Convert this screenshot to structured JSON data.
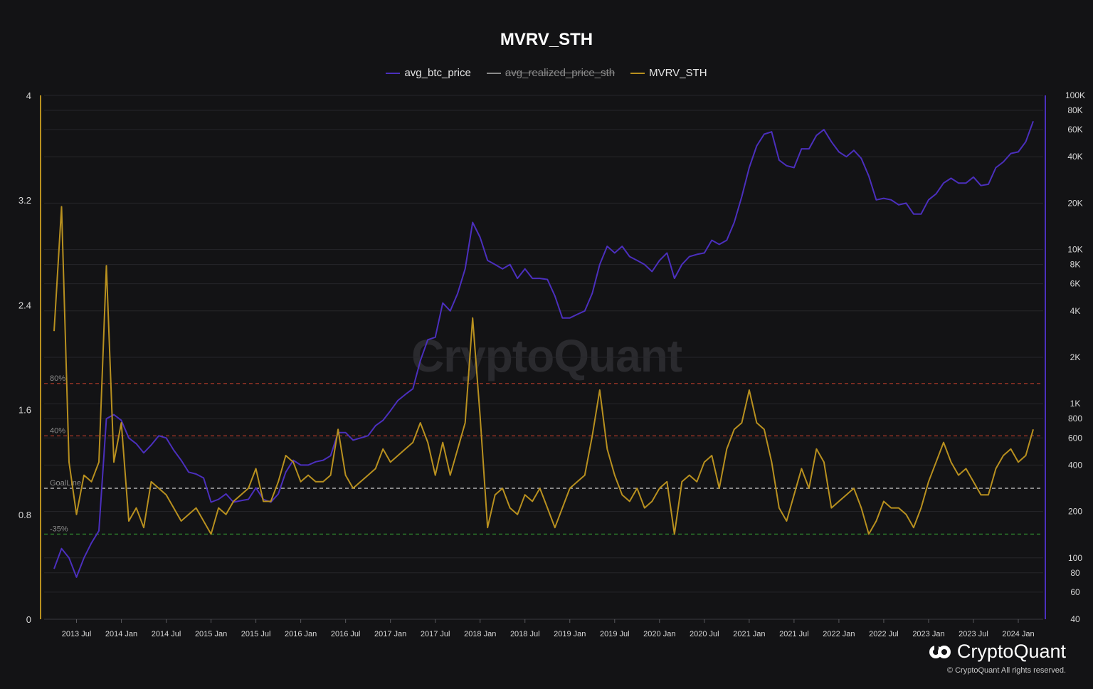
{
  "chart_data": {
    "type": "line",
    "title": "MVRV_STH",
    "legend": [
      {
        "name": "avg_btc_price",
        "color": "#4b2fbd",
        "hidden": false
      },
      {
        "name": "avg_realized_price_sth",
        "color": "#8a8a8a",
        "hidden": true
      },
      {
        "name": "MVRV_STH",
        "color": "#b8901f",
        "hidden": false
      }
    ],
    "left_axis": {
      "range": [
        0,
        4
      ],
      "ticks": [
        "0",
        "0.8",
        "1.6",
        "2.4",
        "3.2",
        "4"
      ],
      "color": "#b8901f"
    },
    "right_axis": {
      "scale": "log",
      "range": [
        40,
        100000
      ],
      "ticks": [
        "40",
        "60",
        "80",
        "100",
        "200",
        "400",
        "600",
        "800",
        "1K",
        "2K",
        "4K",
        "6K",
        "8K",
        "10K",
        "20K",
        "40K",
        "60K",
        "80K",
        "100K"
      ],
      "color": "#4b2fbd"
    },
    "x_ticks": [
      "2013 Jul",
      "2014 Jan",
      "2014 Jul",
      "2015 Jan",
      "2015 Jul",
      "2016 Jan",
      "2016 Jul",
      "2017 Jan",
      "2017 Jul",
      "2018 Jan",
      "2018 Jul",
      "2019 Jan",
      "2019 Jul",
      "2020 Jan",
      "2020 Jul",
      "2021 Jan",
      "2021 Jul",
      "2022 Jan",
      "2022 Jul",
      "2023 Jan",
      "2023 Jul",
      "2024 Jan"
    ],
    "reference_lines": [
      {
        "label": "80%",
        "value": 1.8,
        "color": "#b23a2a"
      },
      {
        "label": "40%",
        "value": 1.4,
        "color": "#b23a2a"
      },
      {
        "label": "GoalLine",
        "value": 1.0,
        "color": "#d0d0d0"
      },
      {
        "label": "-35%",
        "value": 0.65,
        "color": "#2f8a2f"
      }
    ],
    "x_range": [
      "2013-04",
      "2024-03"
    ],
    "series": [
      {
        "name": "avg_btc_price",
        "axis": "right",
        "x": [
          "2013-04",
          "2013-05",
          "2013-06",
          "2013-07",
          "2013-08",
          "2013-09",
          "2013-10",
          "2013-11",
          "2013-12",
          "2014-01",
          "2014-02",
          "2014-03",
          "2014-04",
          "2014-05",
          "2014-06",
          "2014-07",
          "2014-08",
          "2014-09",
          "2014-10",
          "2014-11",
          "2014-12",
          "2015-01",
          "2015-02",
          "2015-03",
          "2015-04",
          "2015-05",
          "2015-06",
          "2015-07",
          "2015-08",
          "2015-09",
          "2015-10",
          "2015-11",
          "2015-12",
          "2016-01",
          "2016-02",
          "2016-03",
          "2016-04",
          "2016-05",
          "2016-06",
          "2016-07",
          "2016-08",
          "2016-09",
          "2016-10",
          "2016-11",
          "2016-12",
          "2017-01",
          "2017-02",
          "2017-03",
          "2017-04",
          "2017-05",
          "2017-06",
          "2017-07",
          "2017-08",
          "2017-09",
          "2017-10",
          "2017-11",
          "2017-12",
          "2018-01",
          "2018-02",
          "2018-03",
          "2018-04",
          "2018-05",
          "2018-06",
          "2018-07",
          "2018-08",
          "2018-09",
          "2018-10",
          "2018-11",
          "2018-12",
          "2019-01",
          "2019-02",
          "2019-03",
          "2019-04",
          "2019-05",
          "2019-06",
          "2019-07",
          "2019-08",
          "2019-09",
          "2019-10",
          "2019-11",
          "2019-12",
          "2020-01",
          "2020-02",
          "2020-03",
          "2020-04",
          "2020-05",
          "2020-06",
          "2020-07",
          "2020-08",
          "2020-09",
          "2020-10",
          "2020-11",
          "2020-12",
          "2021-01",
          "2021-02",
          "2021-03",
          "2021-04",
          "2021-05",
          "2021-06",
          "2021-07",
          "2021-08",
          "2021-09",
          "2021-10",
          "2021-11",
          "2021-12",
          "2022-01",
          "2022-02",
          "2022-03",
          "2022-04",
          "2022-05",
          "2022-06",
          "2022-07",
          "2022-08",
          "2022-09",
          "2022-10",
          "2022-11",
          "2022-12",
          "2023-01",
          "2023-02",
          "2023-03",
          "2023-04",
          "2023-05",
          "2023-06",
          "2023-07",
          "2023-08",
          "2023-09",
          "2023-10",
          "2023-11",
          "2023-12",
          "2024-01",
          "2024-02",
          "2024-03"
        ],
        "values": [
          85,
          115,
          100,
          75,
          100,
          125,
          150,
          800,
          850,
          780,
          600,
          550,
          480,
          540,
          620,
          600,
          500,
          430,
          360,
          350,
          330,
          230,
          240,
          260,
          230,
          235,
          240,
          285,
          240,
          230,
          260,
          360,
          430,
          400,
          400,
          420,
          430,
          460,
          650,
          650,
          580,
          600,
          620,
          720,
          780,
          900,
          1050,
          1150,
          1250,
          1900,
          2600,
          2700,
          4500,
          4000,
          5200,
          7500,
          15000,
          12000,
          8500,
          8000,
          7500,
          8000,
          6500,
          7500,
          6500,
          6500,
          6400,
          5000,
          3600,
          3600,
          3800,
          4000,
          5200,
          8000,
          10500,
          9500,
          10500,
          9000,
          8500,
          8000,
          7200,
          8500,
          9500,
          6500,
          8000,
          9000,
          9300,
          9500,
          11500,
          10800,
          11500,
          15000,
          22000,
          34000,
          47000,
          56000,
          58000,
          38000,
          35000,
          34000,
          45000,
          45000,
          55000,
          60000,
          50000,
          43000,
          40000,
          44000,
          39000,
          30000,
          21000,
          21500,
          21000,
          19500,
          20000,
          17000,
          17000,
          21000,
          23000,
          27000,
          29000,
          27000,
          27000,
          29500,
          26000,
          26500,
          34000,
          37000,
          42000,
          43000,
          50000,
          68000
        ]
      },
      {
        "name": "MVRV_STH",
        "axis": "left",
        "x": [
          "2013-04",
          "2013-05",
          "2013-06",
          "2013-07",
          "2013-08",
          "2013-09",
          "2013-10",
          "2013-11",
          "2013-12",
          "2014-01",
          "2014-02",
          "2014-03",
          "2014-04",
          "2014-05",
          "2014-06",
          "2014-07",
          "2014-08",
          "2014-09",
          "2014-10",
          "2014-11",
          "2014-12",
          "2015-01",
          "2015-02",
          "2015-03",
          "2015-04",
          "2015-05",
          "2015-06",
          "2015-07",
          "2015-08",
          "2015-09",
          "2015-10",
          "2015-11",
          "2015-12",
          "2016-01",
          "2016-02",
          "2016-03",
          "2016-04",
          "2016-05",
          "2016-06",
          "2016-07",
          "2016-08",
          "2016-09",
          "2016-10",
          "2016-11",
          "2016-12",
          "2017-01",
          "2017-02",
          "2017-03",
          "2017-04",
          "2017-05",
          "2017-06",
          "2017-07",
          "2017-08",
          "2017-09",
          "2017-10",
          "2017-11",
          "2017-12",
          "2018-01",
          "2018-02",
          "2018-03",
          "2018-04",
          "2018-05",
          "2018-06",
          "2018-07",
          "2018-08",
          "2018-09",
          "2018-10",
          "2018-11",
          "2018-12",
          "2019-01",
          "2019-02",
          "2019-03",
          "2019-04",
          "2019-05",
          "2019-06",
          "2019-07",
          "2019-08",
          "2019-09",
          "2019-10",
          "2019-11",
          "2019-12",
          "2020-01",
          "2020-02",
          "2020-03",
          "2020-04",
          "2020-05",
          "2020-06",
          "2020-07",
          "2020-08",
          "2020-09",
          "2020-10",
          "2020-11",
          "2020-12",
          "2021-01",
          "2021-02",
          "2021-03",
          "2021-04",
          "2021-05",
          "2021-06",
          "2021-07",
          "2021-08",
          "2021-09",
          "2021-10",
          "2021-11",
          "2021-12",
          "2022-01",
          "2022-02",
          "2022-03",
          "2022-04",
          "2022-05",
          "2022-06",
          "2022-07",
          "2022-08",
          "2022-09",
          "2022-10",
          "2022-11",
          "2022-12",
          "2023-01",
          "2023-02",
          "2023-03",
          "2023-04",
          "2023-05",
          "2023-06",
          "2023-07",
          "2023-08",
          "2023-09",
          "2023-10",
          "2023-11",
          "2023-12",
          "2024-01",
          "2024-02",
          "2024-03"
        ],
        "values": [
          2.2,
          3.15,
          1.2,
          0.8,
          1.1,
          1.05,
          1.2,
          2.7,
          1.2,
          1.5,
          0.75,
          0.85,
          0.7,
          1.05,
          1.0,
          0.95,
          0.85,
          0.75,
          0.8,
          0.85,
          0.75,
          0.65,
          0.85,
          0.8,
          0.9,
          0.95,
          1.0,
          1.15,
          0.9,
          0.9,
          1.05,
          1.25,
          1.2,
          1.05,
          1.1,
          1.05,
          1.05,
          1.1,
          1.45,
          1.1,
          1.0,
          1.05,
          1.1,
          1.15,
          1.3,
          1.2,
          1.25,
          1.3,
          1.35,
          1.5,
          1.35,
          1.1,
          1.35,
          1.1,
          1.3,
          1.5,
          2.3,
          1.55,
          0.7,
          0.95,
          1.0,
          0.85,
          0.8,
          0.95,
          0.9,
          1.0,
          0.85,
          0.7,
          0.85,
          1.0,
          1.05,
          1.1,
          1.4,
          1.75,
          1.3,
          1.1,
          0.95,
          0.9,
          1.0,
          0.85,
          0.9,
          1.0,
          1.05,
          0.65,
          1.05,
          1.1,
          1.05,
          1.2,
          1.25,
          1.0,
          1.3,
          1.45,
          1.5,
          1.75,
          1.5,
          1.45,
          1.2,
          0.85,
          0.75,
          0.95,
          1.15,
          1.0,
          1.3,
          1.2,
          0.85,
          0.9,
          0.95,
          1.0,
          0.85,
          0.65,
          0.75,
          0.9,
          0.85,
          0.85,
          0.8,
          0.7,
          0.85,
          1.05,
          1.2,
          1.35,
          1.2,
          1.1,
          1.15,
          1.05,
          0.95,
          0.95,
          1.15,
          1.25,
          1.3,
          1.2,
          1.25,
          1.45
        ]
      }
    ]
  },
  "branding": {
    "watermark": "CryptoQuant",
    "brand_name": "CryptoQuant",
    "copyright": "© CryptoQuant All rights reserved."
  }
}
